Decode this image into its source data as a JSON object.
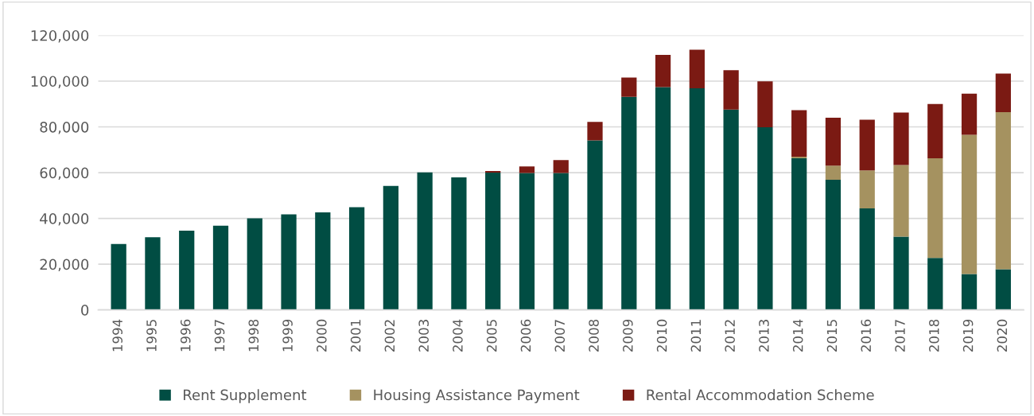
{
  "chart_data": {
    "type": "bar",
    "stacked": true,
    "categories": [
      "1994",
      "1995",
      "1996",
      "1997",
      "1998",
      "1999",
      "2000",
      "2001",
      "2002",
      "2003",
      "2004",
      "2005",
      "2006",
      "2007",
      "2008",
      "2009",
      "2010",
      "2011",
      "2012",
      "2013",
      "2014",
      "2015",
      "2016",
      "2017",
      "2018",
      "2019",
      "2020"
    ],
    "series": [
      {
        "name": "Rent Supplement",
        "color": "#014d43",
        "values": [
          28800,
          31800,
          34600,
          36800,
          40000,
          41800,
          42600,
          44900,
          54200,
          60100,
          57900,
          60000,
          59800,
          59800,
          74100,
          93100,
          97400,
          96900,
          87600,
          79800,
          66300,
          56900,
          44400,
          32000,
          22700,
          15700,
          17800
        ]
      },
      {
        "name": "Housing Assistance Payment",
        "color": "#a59260",
        "values": [
          null,
          null,
          null,
          null,
          null,
          null,
          null,
          null,
          null,
          null,
          null,
          null,
          null,
          null,
          null,
          null,
          null,
          null,
          null,
          null,
          700,
          6200,
          16600,
          31300,
          43600,
          60800,
          68600
        ]
      },
      {
        "name": "Rental Accommodation Scheme",
        "color": "#7b1a13",
        "values": [
          null,
          null,
          null,
          null,
          null,
          null,
          null,
          null,
          null,
          null,
          null,
          700,
          2900,
          5700,
          8100,
          8500,
          14100,
          16800,
          17200,
          20100,
          20300,
          20900,
          22100,
          23000,
          23700,
          18000,
          16900
        ]
      }
    ],
    "ylim": [
      0,
      120000
    ],
    "yticks": [
      {
        "value": 0,
        "label": "0"
      },
      {
        "value": 20000,
        "label": "20,000"
      },
      {
        "value": 40000,
        "label": "40,000"
      },
      {
        "value": 60000,
        "label": "60,000"
      },
      {
        "value": 80000,
        "label": "80,000"
      },
      {
        "value": 100000,
        "label": "100,000"
      },
      {
        "value": 120000,
        "label": "120,000"
      }
    ],
    "grid": "y",
    "legend": "bottom"
  }
}
